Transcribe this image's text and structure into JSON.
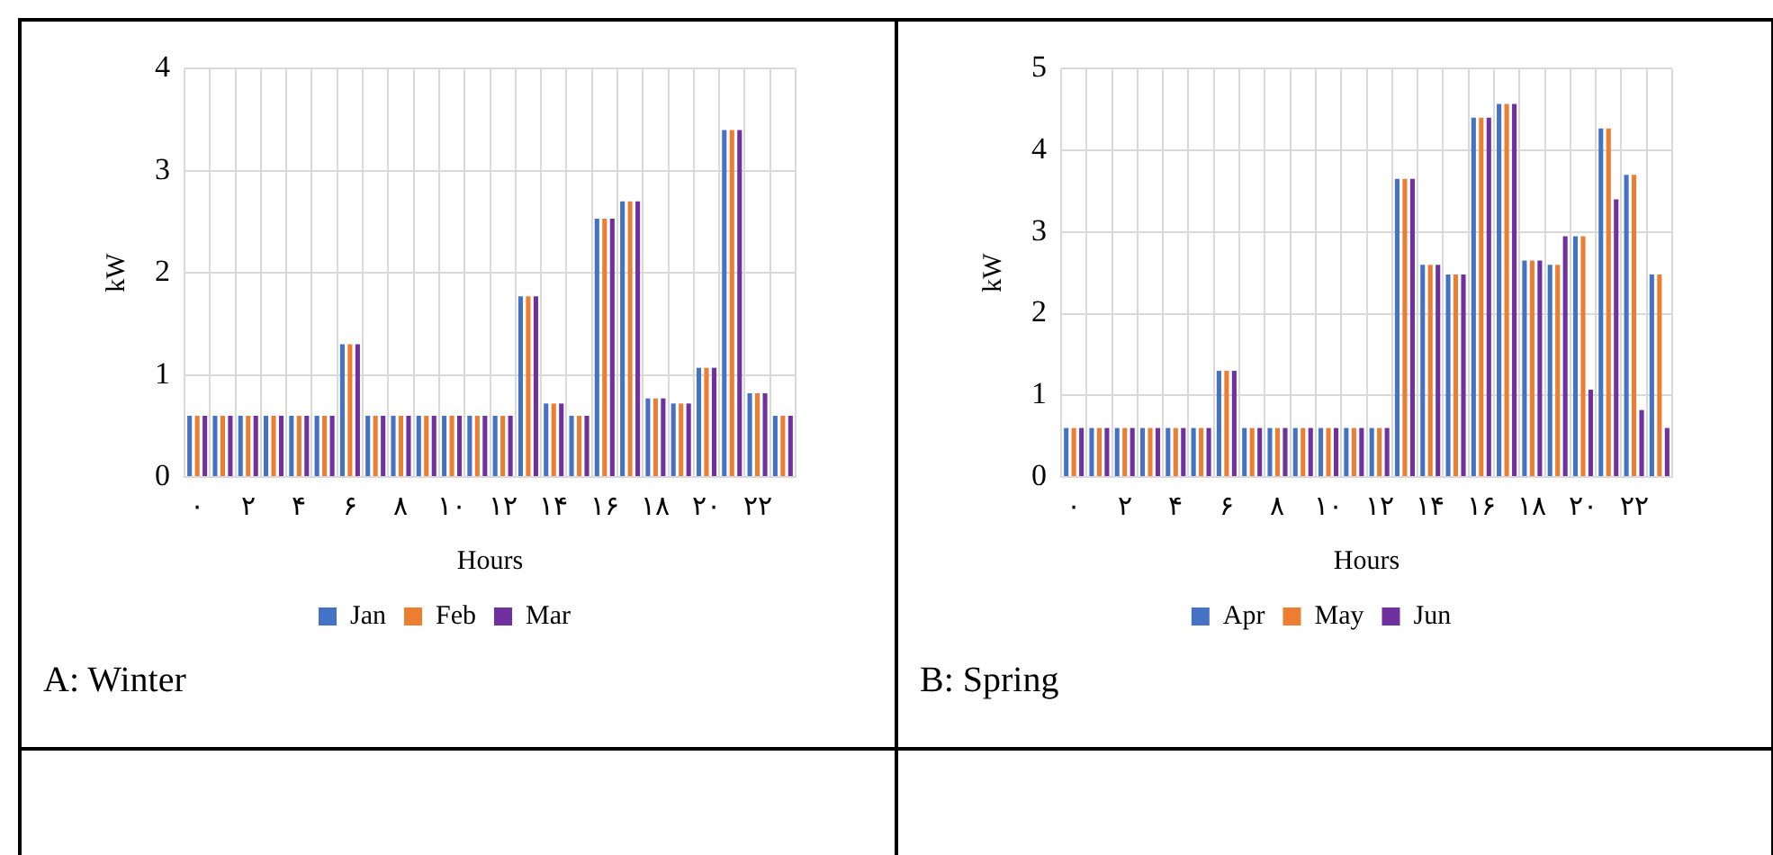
{
  "chart_data": [
    {
      "type": "bar",
      "xlabel": "Hours",
      "ylabel": "kW",
      "categories": [
        "۰",
        null,
        "۲",
        null,
        "۴",
        null,
        "۶",
        null,
        "۸",
        null,
        "۱۰",
        null,
        "۱۲",
        null,
        "۱۴",
        null,
        "۱۶",
        null,
        "۱۸",
        null,
        "۲۰",
        null,
        "۲۲",
        null
      ],
      "series": [
        {
          "name": "Jan",
          "color": "#4472c4",
          "values": [
            0.6,
            0.6,
            0.6,
            0.6,
            0.6,
            0.6,
            1.3,
            0.6,
            0.6,
            0.6,
            0.6,
            0.6,
            0.6,
            1.77,
            0.72,
            0.6,
            2.53,
            2.7,
            0.77,
            0.72,
            1.07,
            3.4,
            0.82,
            0.6
          ]
        },
        {
          "name": "Feb",
          "color": "#ed7d31",
          "values": [
            0.6,
            0.6,
            0.6,
            0.6,
            0.6,
            0.6,
            1.3,
            0.6,
            0.6,
            0.6,
            0.6,
            0.6,
            0.6,
            1.77,
            0.72,
            0.6,
            2.53,
            2.7,
            0.77,
            0.72,
            1.07,
            3.4,
            0.82,
            0.6
          ]
        },
        {
          "name": "Mar",
          "color": "#7030a0",
          "values": [
            0.6,
            0.6,
            0.6,
            0.6,
            0.6,
            0.6,
            1.3,
            0.6,
            0.6,
            0.6,
            0.6,
            0.6,
            0.6,
            1.77,
            0.72,
            0.6,
            2.53,
            2.7,
            0.77,
            0.72,
            1.07,
            3.4,
            0.82,
            0.6
          ]
        }
      ],
      "ylim": [
        0,
        4
      ],
      "yticks": [
        0,
        1,
        2,
        3,
        4
      ],
      "grid": true,
      "legend": "bottom",
      "annotations": [
        "A: Winter"
      ]
    },
    {
      "type": "bar",
      "xlabel": "Hours",
      "ylabel": "kW",
      "categories": [
        "۰",
        null,
        "۲",
        null,
        "۴",
        null,
        "۶",
        null,
        "۸",
        null,
        "۱۰",
        null,
        "۱۲",
        null,
        "۱۴",
        null,
        "۱۶",
        null,
        "۱۸",
        null,
        "۲۰",
        null,
        "۲۲",
        null
      ],
      "series": [
        {
          "name": "Apr",
          "color": "#4472c4",
          "values": [
            0.6,
            0.6,
            0.6,
            0.6,
            0.6,
            0.6,
            1.3,
            0.6,
            0.6,
            0.6,
            0.6,
            0.6,
            0.6,
            3.65,
            2.6,
            2.48,
            4.4,
            4.57,
            2.65,
            2.6,
            2.95,
            4.27,
            3.7,
            2.48
          ]
        },
        {
          "name": "May",
          "color": "#ed7d31",
          "values": [
            0.6,
            0.6,
            0.6,
            0.6,
            0.6,
            0.6,
            1.3,
            0.6,
            0.6,
            0.6,
            0.6,
            0.6,
            0.6,
            3.65,
            2.6,
            2.48,
            4.4,
            4.57,
            2.65,
            2.6,
            2.95,
            4.27,
            3.7,
            2.48
          ]
        },
        {
          "name": "Jun",
          "color": "#7030a0",
          "values": [
            0.6,
            0.6,
            0.6,
            0.6,
            0.6,
            0.6,
            1.3,
            0.6,
            0.6,
            0.6,
            0.6,
            0.6,
            0.6,
            3.65,
            2.6,
            2.48,
            4.4,
            4.57,
            2.65,
            2.95,
            1.07,
            3.4,
            0.82,
            0.6
          ]
        }
      ],
      "ylim": [
        0,
        5
      ],
      "yticks": [
        0,
        1,
        2,
        3,
        4,
        5
      ],
      "grid": true,
      "legend": "bottom",
      "annotations": [
        "B: Spring"
      ]
    }
  ]
}
